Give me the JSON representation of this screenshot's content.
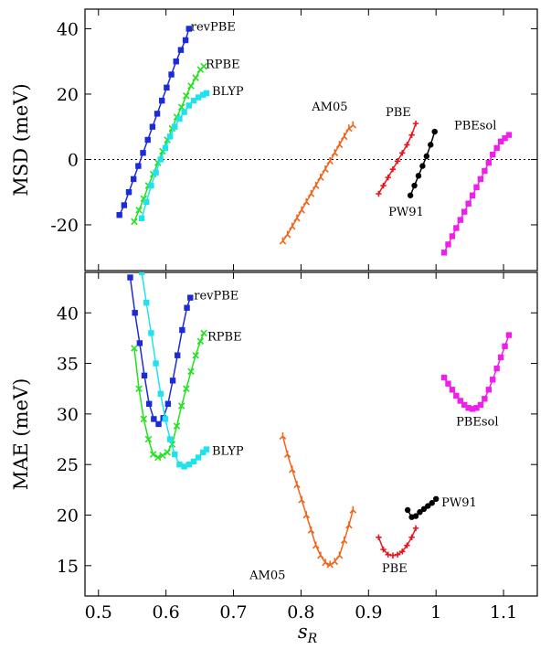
{
  "chart_data": [
    {
      "type": "line",
      "panel": "top",
      "ylabel": "MSD (meV)",
      "xlabel": "",
      "xlim": [
        0.48,
        1.15
      ],
      "ylim": [
        -34,
        46
      ],
      "yticks": [
        40,
        20,
        0,
        -20
      ],
      "ytick_labels": [
        "40",
        "20",
        "0",
        "-20"
      ],
      "xticks": [
        0.5,
        0.6,
        0.7,
        0.8,
        0.9,
        1.0,
        1.1
      ],
      "zero_line": "dotted",
      "grid": false,
      "legend": "none",
      "series": [
        {
          "name": "revPBE",
          "color": "#1c2bd9",
          "marker": "square",
          "x": [
            0.531,
            0.538,
            0.545,
            0.552,
            0.559,
            0.566,
            0.573,
            0.58,
            0.587,
            0.594,
            0.601,
            0.608,
            0.615,
            0.622,
            0.629,
            0.634
          ],
          "y": [
            -17,
            -14,
            -10,
            -6,
            -2,
            2,
            6,
            10,
            14,
            18,
            22,
            26,
            30,
            33.5,
            36.5,
            40
          ]
        },
        {
          "name": "RPBE",
          "color": "#22e21e",
          "marker": "x",
          "x": [
            0.553,
            0.56,
            0.567,
            0.574,
            0.581,
            0.588,
            0.595,
            0.602,
            0.609,
            0.616,
            0.623,
            0.63,
            0.637,
            0.644,
            0.651,
            0.656
          ],
          "y": [
            -19,
            -15.5,
            -12,
            -8,
            -4.5,
            -1,
            2.5,
            6,
            9.5,
            13,
            16,
            19.5,
            22.5,
            25,
            27.5,
            28.5
          ]
        },
        {
          "name": "BLYP",
          "color": "#1ee3ee",
          "marker": "square",
          "x": [
            0.564,
            0.571,
            0.578,
            0.585,
            0.592,
            0.599,
            0.606,
            0.613,
            0.62,
            0.627,
            0.634,
            0.641,
            0.648,
            0.655,
            0.66
          ],
          "y": [
            -18,
            -13,
            -8,
            -4,
            0,
            3.5,
            7,
            10,
            12.5,
            14.5,
            16.5,
            18,
            19,
            19.8,
            20.3
          ]
        },
        {
          "name": "AM05",
          "color": "#f2631a",
          "marker": "tri",
          "x": [
            0.773,
            0.78,
            0.787,
            0.794,
            0.801,
            0.808,
            0.815,
            0.822,
            0.829,
            0.836,
            0.843,
            0.85,
            0.857,
            0.864,
            0.871,
            0.877
          ],
          "y": [
            -25,
            -23,
            -20.5,
            -18,
            -15.5,
            -13,
            -10.5,
            -8,
            -5.5,
            -3,
            -0.5,
            2,
            4.5,
            7,
            9.5,
            10.5
          ]
        },
        {
          "name": "PBE",
          "color": "#e8141c",
          "marker": "plus",
          "x": [
            0.915,
            0.922,
            0.929,
            0.936,
            0.943,
            0.95,
            0.957,
            0.964,
            0.97
          ],
          "y": [
            -10.5,
            -8,
            -5.5,
            -3,
            -0.5,
            2,
            4.5,
            7.5,
            11
          ]
        },
        {
          "name": "PW91",
          "color": "#000000",
          "marker": "circle",
          "x": [
            0.962,
            0.968,
            0.974,
            0.98,
            0.986,
            0.992,
            0.998
          ],
          "y": [
            -11,
            -8,
            -5,
            -2,
            1,
            4.5,
            8.5
          ]
        },
        {
          "name": "PBEsol",
          "color": "#ef1ee8",
          "marker": "square",
          "x": [
            1.012,
            1.018,
            1.024,
            1.03,
            1.036,
            1.042,
            1.048,
            1.054,
            1.06,
            1.066,
            1.072,
            1.078,
            1.084,
            1.09,
            1.096,
            1.102,
            1.108
          ],
          "y": [
            -28.5,
            -26,
            -23.5,
            -21,
            -18.5,
            -16,
            -13.5,
            -11,
            -8.5,
            -6,
            -3.5,
            -1,
            1.5,
            3.5,
            5.5,
            6.5,
            7.5
          ]
        }
      ]
    },
    {
      "type": "line",
      "panel": "bottom",
      "ylabel": "MAE (meV)",
      "xlabel": "s",
      "xlabel_sub": "R",
      "xlim": [
        0.48,
        1.15
      ],
      "ylim": [
        12,
        44
      ],
      "yticks": [
        40,
        35,
        30,
        25,
        20,
        15
      ],
      "ytick_labels": [
        "40",
        "35",
        "30",
        "25",
        "20",
        "15"
      ],
      "xticks": [
        0.5,
        0.6,
        0.7,
        0.8,
        0.9,
        1.0,
        1.1
      ],
      "xtick_labels": [
        "0.5",
        "0.6",
        "0.7",
        "0.8",
        "0.9",
        "1",
        "1.1"
      ],
      "grid": false,
      "legend": "none",
      "series": [
        {
          "name": "revPBE",
          "color": "#1c2bd9",
          "marker": "square",
          "x": [
            0.547,
            0.554,
            0.561,
            0.568,
            0.575,
            0.582,
            0.589,
            0.596,
            0.603,
            0.61,
            0.617,
            0.624,
            0.631,
            0.636
          ],
          "y": [
            43.5,
            40,
            37,
            33.8,
            31,
            29.5,
            29,
            29.6,
            31,
            33.3,
            35.8,
            38.3,
            40.5,
            41.5
          ]
        },
        {
          "name": "RPBE",
          "color": "#22e21e",
          "marker": "x",
          "x": [
            0.553,
            0.56,
            0.567,
            0.574,
            0.581,
            0.588,
            0.595,
            0.602,
            0.609,
            0.616,
            0.623,
            0.63,
            0.637,
            0.644,
            0.651,
            0.656
          ],
          "y": [
            36.5,
            32.5,
            29.5,
            27.5,
            26,
            25.7,
            25.9,
            26.2,
            27,
            28.8,
            30.8,
            32.5,
            34.2,
            35.8,
            37.2,
            38
          ]
        },
        {
          "name": "BLYP",
          "color": "#1ee3ee",
          "marker": "square",
          "x": [
            0.564,
            0.571,
            0.578,
            0.585,
            0.592,
            0.599,
            0.606,
            0.613,
            0.62,
            0.627,
            0.634,
            0.641,
            0.648,
            0.655,
            0.66
          ],
          "y": [
            44,
            41,
            38,
            35,
            32,
            29.5,
            27.5,
            26,
            25,
            24.8,
            25,
            25.3,
            25.7,
            26.2,
            26.5
          ]
        },
        {
          "name": "AM05",
          "color": "#f2631a",
          "marker": "tri",
          "x": [
            0.773,
            0.78,
            0.787,
            0.794,
            0.801,
            0.808,
            0.815,
            0.822,
            0.829,
            0.836,
            0.843,
            0.85,
            0.857,
            0.864,
            0.871,
            0.877
          ],
          "y": [
            27.8,
            26,
            24.5,
            23,
            21.5,
            20,
            18.5,
            17,
            16,
            15.3,
            15.1,
            15.4,
            16,
            17.5,
            19,
            20.5
          ]
        },
        {
          "name": "PBE",
          "color": "#e8141c",
          "marker": "plus",
          "x": [
            0.915,
            0.922,
            0.929,
            0.936,
            0.943,
            0.95,
            0.957,
            0.964,
            0.97
          ],
          "y": [
            17.8,
            16.6,
            16.1,
            16,
            16.1,
            16.4,
            17,
            17.8,
            18.7
          ]
        },
        {
          "name": "PW91",
          "color": "#000000",
          "marker": "circle",
          "x": [
            0.958,
            0.964,
            0.97,
            0.976,
            0.982,
            0.988,
            0.994,
            1.0
          ],
          "y": [
            20.5,
            19.8,
            19.9,
            20.3,
            20.6,
            20.9,
            21.2,
            21.6
          ]
        },
        {
          "name": "PBEsol",
          "color": "#ef1ee8",
          "marker": "square",
          "x": [
            1.012,
            1.018,
            1.024,
            1.03,
            1.036,
            1.042,
            1.048,
            1.054,
            1.06,
            1.066,
            1.072,
            1.078,
            1.084,
            1.09,
            1.096,
            1.102,
            1.108
          ],
          "y": [
            33.6,
            33,
            32.4,
            31.8,
            31.3,
            30.9,
            30.6,
            30.5,
            30.6,
            30.9,
            31.5,
            32.4,
            33.4,
            34.5,
            35.6,
            36.7,
            37.8
          ]
        }
      ]
    }
  ]
}
